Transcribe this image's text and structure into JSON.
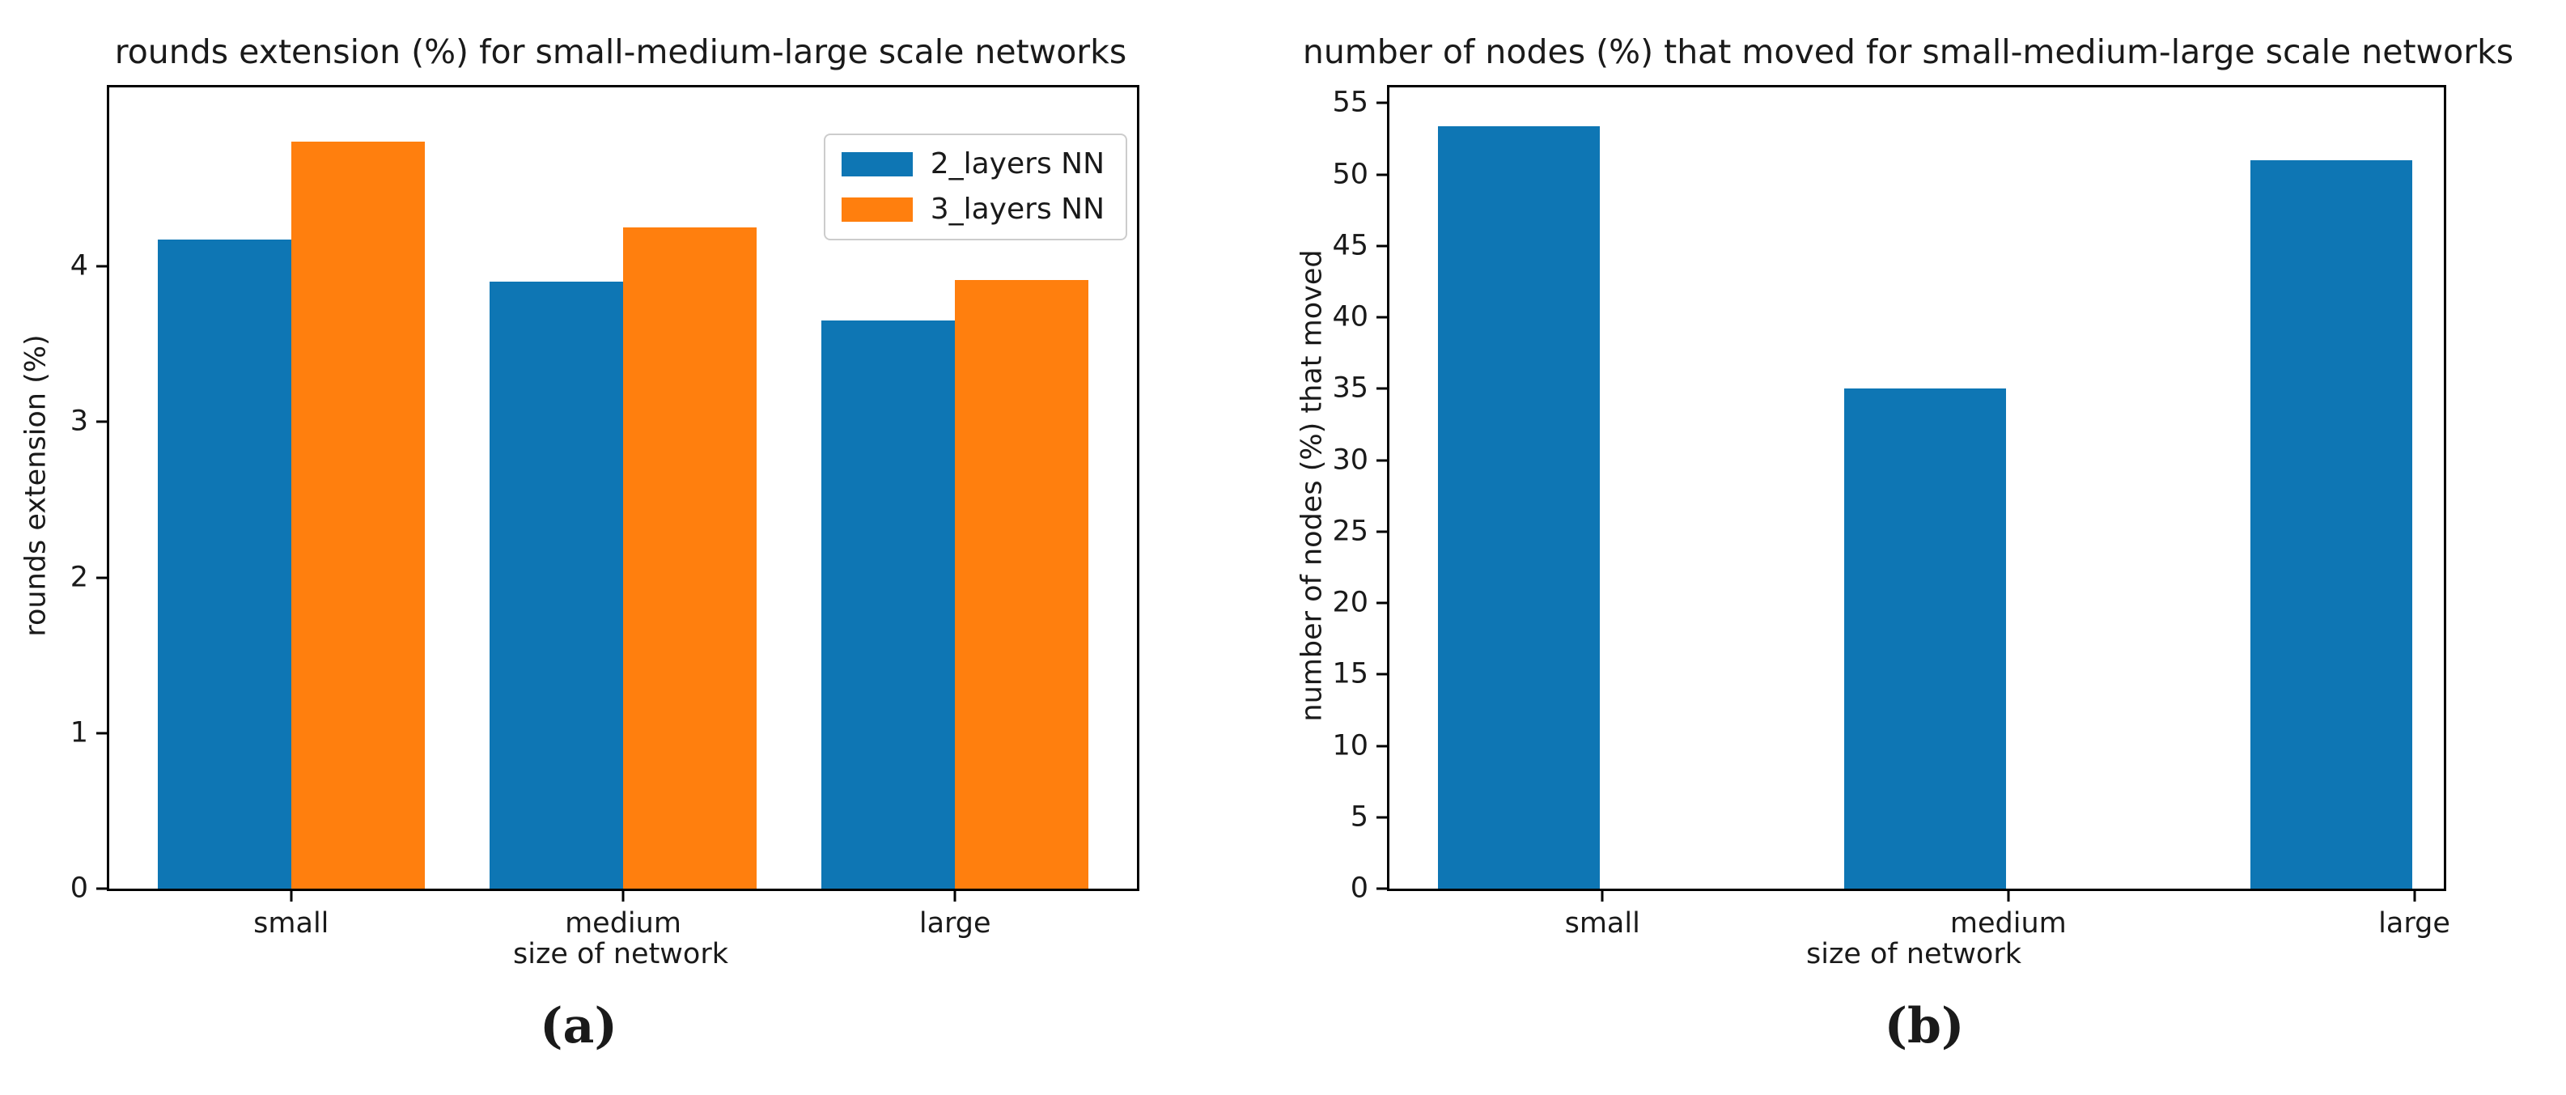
{
  "figure": {
    "background": "#ffffff",
    "axis_color": "#000000",
    "text_color": "#1a1a1a",
    "series_colors": {
      "blue": "#0e76b4",
      "orange": "#ff7f0e"
    }
  },
  "chart_data": [
    {
      "type": "bar",
      "title": "rounds extension (%) for small-medium-large scale networks",
      "xlabel": "size of network",
      "ylabel": "rounds extension (%)",
      "categories": [
        "small",
        "medium",
        "large"
      ],
      "series": [
        {
          "name": "2_layers NN",
          "color": "#0e76b4",
          "values": [
            4.17,
            3.9,
            3.65
          ]
        },
        {
          "name": "3_layers NN",
          "color": "#ff7f0e",
          "values": [
            4.8,
            4.25,
            3.91
          ]
        }
      ],
      "yticks": [
        0,
        1,
        2,
        3,
        4
      ],
      "ylim": [
        0,
        5.15
      ],
      "grid": false,
      "legend_position": "upper right",
      "caption": "(a)"
    },
    {
      "type": "bar",
      "title": "number of nodes (%) that moved for small-medium-large scale networks",
      "xlabel": "size of network",
      "ylabel": "number of nodes (%) that moved",
      "categories": [
        "small",
        "medium",
        "large"
      ],
      "series": [
        {
          "color": "#0e76b4",
          "values": [
            53.4,
            35.0,
            51.0
          ]
        }
      ],
      "yticks": [
        0,
        5,
        10,
        15,
        20,
        25,
        30,
        35,
        40,
        45,
        50,
        55
      ],
      "ylim": [
        0,
        56.1
      ],
      "grid": false,
      "legend_position": null,
      "caption": "(b)"
    }
  ]
}
